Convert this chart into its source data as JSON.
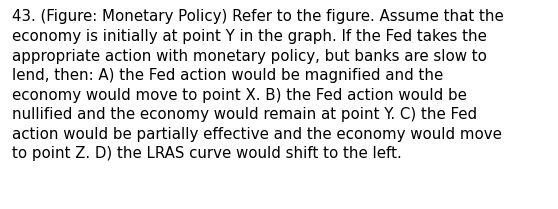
{
  "lines": [
    "43. (Figure: Monetary Policy) Refer to the figure. Assume that the",
    "economy is initially at point Y in the graph. If the Fed takes the",
    "appropriate action with monetary policy, but banks are slow to",
    "lend, then: A) the Fed action would be magnified and the",
    "economy would move to point X. B) the Fed action would be",
    "nullified and the economy would remain at point Y. C) the Fed",
    "action would be partially effective and the economy would move",
    "to point Z. D) the LRAS curve would shift to the left."
  ],
  "background_color": "#ffffff",
  "text_color": "#000000",
  "font_size": 10.8,
  "fig_width": 5.58,
  "fig_height": 2.09,
  "dpi": 100
}
